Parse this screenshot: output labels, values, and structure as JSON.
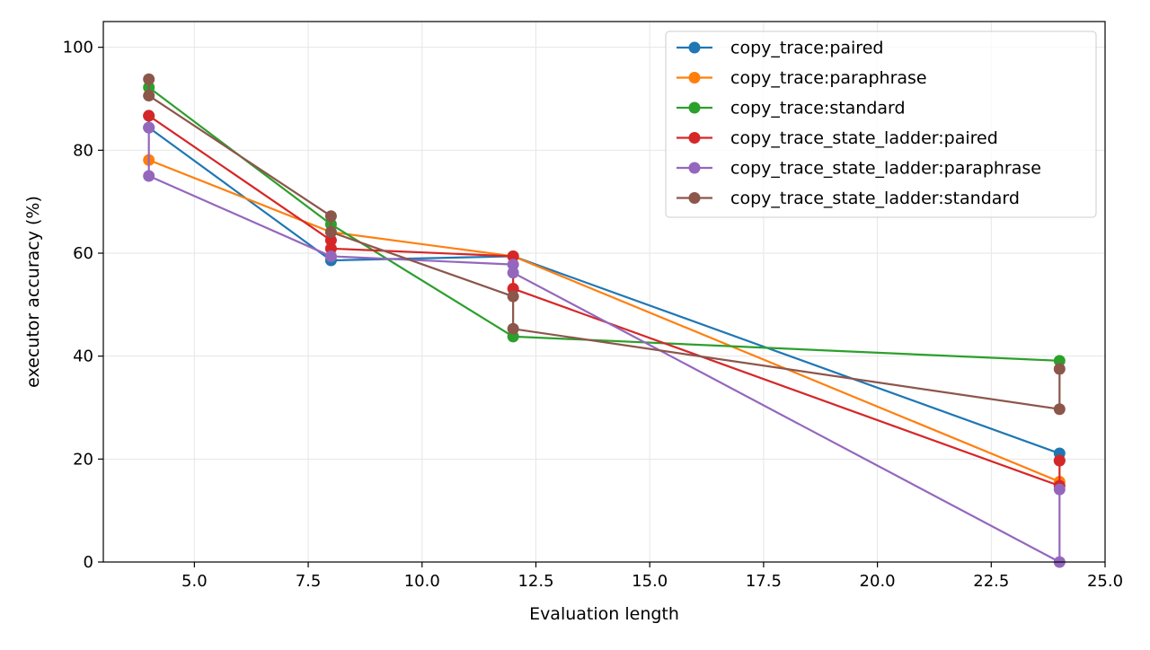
{
  "chart_data": {
    "type": "line",
    "title": "",
    "xlabel": "Evaluation length",
    "ylabel": "executor accuracy (%)",
    "xlim": [
      3,
      25
    ],
    "ylim": [
      0,
      105
    ],
    "xticks": [
      5,
      7.5,
      10,
      12.5,
      15,
      17.5,
      20,
      22.5,
      25
    ],
    "xtick_labels": [
      "5.0",
      "7.5",
      "10.0",
      "12.5",
      "15.0",
      "17.5",
      "20.0",
      "22.5",
      "25.0"
    ],
    "yticks": [
      0,
      20,
      40,
      60,
      80,
      100
    ],
    "ytick_labels": [
      "0",
      "20",
      "40",
      "60",
      "80",
      "100"
    ],
    "grid": true,
    "legend_position": "top-right",
    "series": [
      {
        "name": "copy_trace:paired",
        "color": "#1f77b4",
        "points": [
          [
            4,
            86.7
          ],
          [
            4,
            84.4
          ],
          [
            8,
            58.6
          ],
          [
            12,
            59.4
          ],
          [
            24,
            21.1
          ],
          [
            24,
            19.7
          ]
        ]
      },
      {
        "name": "copy_trace:paraphrase",
        "color": "#ff7f0e",
        "points": [
          [
            4,
            78.1
          ],
          [
            8,
            64.1
          ],
          [
            12,
            59.4
          ],
          [
            24,
            15.6
          ]
        ]
      },
      {
        "name": "copy_trace:standard",
        "color": "#2ca02c",
        "points": [
          [
            4,
            92.2
          ],
          [
            8,
            65.6
          ],
          [
            12,
            43.8
          ],
          [
            24,
            39.1
          ]
        ]
      },
      {
        "name": "copy_trace_state_ladder:paired",
        "color": "#d62728",
        "points": [
          [
            4,
            86.7
          ],
          [
            8,
            62.5
          ],
          [
            8,
            60.9
          ],
          [
            12,
            59.4
          ],
          [
            12,
            53.1
          ],
          [
            24,
            14.8
          ],
          [
            24,
            19.7
          ]
        ]
      },
      {
        "name": "copy_trace_state_ladder:paraphrase",
        "color": "#9467bd",
        "points": [
          [
            4,
            84.4
          ],
          [
            4,
            75.0
          ],
          [
            8,
            59.4
          ],
          [
            12,
            57.8
          ],
          [
            12,
            56.2
          ],
          [
            24,
            0.0
          ],
          [
            24,
            14.1
          ]
        ]
      },
      {
        "name": "copy_trace_state_ladder:standard",
        "color": "#8c564b",
        "points": [
          [
            4,
            93.8
          ],
          [
            4,
            90.6
          ],
          [
            8,
            67.2
          ],
          [
            8,
            64.1
          ],
          [
            12,
            51.6
          ],
          [
            12,
            45.3
          ],
          [
            24,
            29.7
          ],
          [
            24,
            37.5
          ]
        ]
      }
    ]
  }
}
